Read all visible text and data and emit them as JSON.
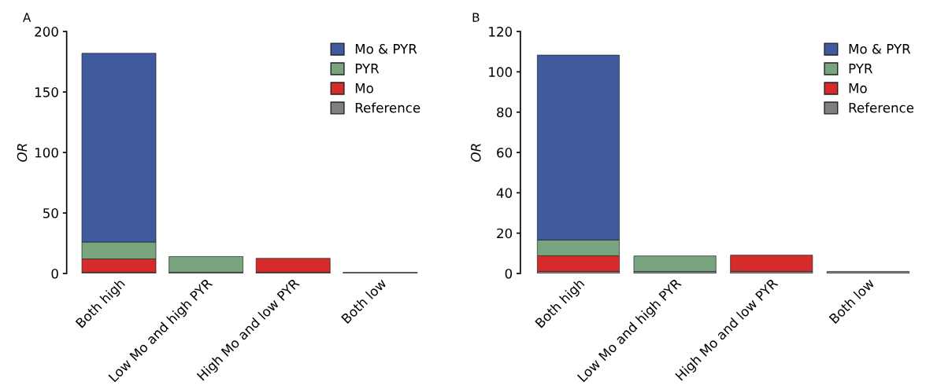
{
  "chart_data": [
    {
      "type": "bar",
      "title": "A",
      "ylabel": "OR",
      "stacked": true,
      "categories": [
        "Both high",
        "Low Mo and high PYR",
        "High Mo and low PYR",
        "Both low"
      ],
      "ylim": [
        0,
        200
      ],
      "yticks": [
        0,
        50,
        100,
        150,
        200
      ],
      "legend": "top right",
      "grid": false,
      "series": [
        {
          "name": "Reference",
          "color": "#7f7f7f",
          "values": [
            1,
            1,
            1,
            1
          ]
        },
        {
          "name": "Mo",
          "color": "#d62b2b",
          "values": [
            11,
            null,
            11.5,
            null
          ]
        },
        {
          "name": "PYR",
          "color": "#79a57e",
          "values": [
            14,
            13,
            null,
            null
          ]
        },
        {
          "name": "Mo & PYR",
          "color": "#3f5a9e",
          "values": [
            156,
            null,
            null,
            null
          ]
        }
      ]
    },
    {
      "type": "bar",
      "title": "B",
      "ylabel": "OR",
      "stacked": true,
      "categories": [
        "Both high",
        "Low Mo and high PYR",
        "High Mo and low PYR",
        "Both low"
      ],
      "ylim": [
        0,
        120
      ],
      "yticks": [
        0,
        20,
        40,
        60,
        80,
        100,
        120
      ],
      "legend": "top right",
      "grid": false,
      "series": [
        {
          "name": "Reference",
          "color": "#7f7f7f",
          "values": [
            1,
            1,
            1,
            1
          ]
        },
        {
          "name": "Mo",
          "color": "#d62b2b",
          "values": [
            7.8,
            null,
            8.1,
            null
          ]
        },
        {
          "name": "PYR",
          "color": "#79a57e",
          "values": [
            7.8,
            7.7,
            null,
            null
          ]
        },
        {
          "name": "Mo & PYR",
          "color": "#3f5a9e",
          "values": [
            91.7,
            null,
            null,
            null
          ]
        }
      ]
    }
  ]
}
